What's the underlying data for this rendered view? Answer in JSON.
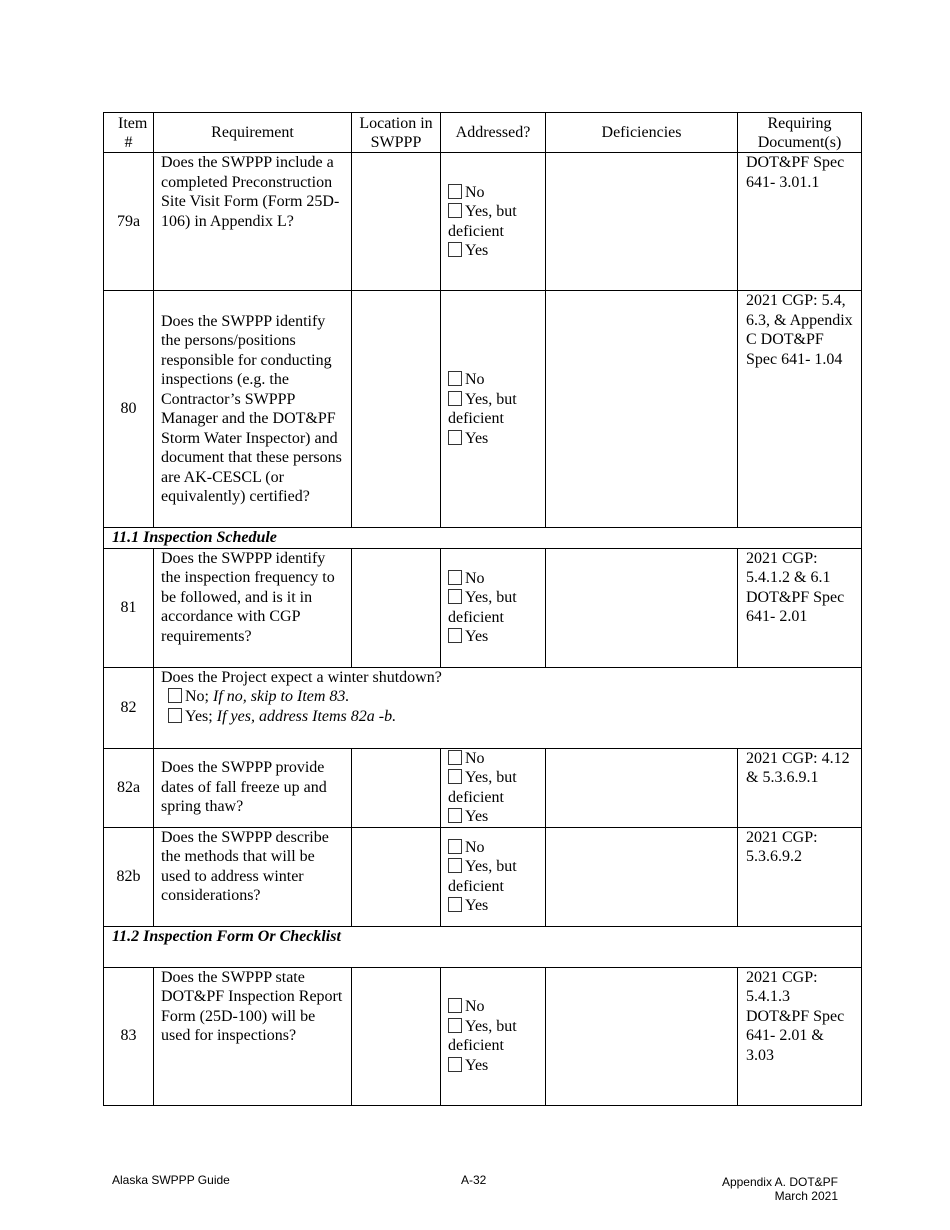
{
  "headers": [
    "Item #",
    "Requirement",
    "Location in SWPPP",
    "Addressed?",
    "Deficiencies",
    "Requiring Document(s)"
  ],
  "addressed_options": [
    "No",
    "Yes, but deficient",
    "Yes"
  ],
  "rows": [
    {
      "type": "item",
      "item": "79a",
      "requirement": "Does the SWPPP include a completed Preconstruction Site Visit Form (Form 25D-106) in Appendix L?",
      "location": "",
      "deficiencies": "",
      "docs": "DOT&PF Spec 641- 3.01.1"
    },
    {
      "type": "item",
      "item": "80",
      "requirement": "Does the SWPPP identify the persons/positions responsible for conducting inspections (e.g. the Contractor’s SWPPP Manager and the DOT&PF Storm Water Inspector) and document that these persons are AK-CESCL (or equivalently) certified?",
      "location": "",
      "deficiencies": "",
      "docs": "2021 CGP: 5.4, 6.3, & Appendix C DOT&PF Spec 641- 1.04"
    },
    {
      "type": "section",
      "title": "11.1 Inspection Schedule"
    },
    {
      "type": "item",
      "item": "81",
      "requirement": "Does the SWPPP identify the inspection frequency to be followed, and is it in accordance with CGP requirements?",
      "location": "",
      "deficiencies": "",
      "docs": "2021 CGP: 5.4.1.2 & 6.1 DOT&PF Spec 641- 2.01"
    },
    {
      "type": "question",
      "item": "82",
      "question": "Does the Project expect a winter shutdown?",
      "options": [
        {
          "label": "No;",
          "note": "If no, skip to Item 83."
        },
        {
          "label": "Yes;",
          "note": "If yes, address Items 82a -b."
        }
      ]
    },
    {
      "type": "item",
      "item": "82a",
      "requirement": "Does the SWPPP provide dates of fall freeze up and spring thaw?",
      "location": "",
      "deficiencies": "",
      "docs": "2021 CGP: 4.12 & 5.3.6.9.1"
    },
    {
      "type": "item",
      "item": "82b",
      "requirement": "Does the SWPPP describe the methods that will be used to address winter considerations?",
      "location": "",
      "deficiencies": "",
      "docs": "2021 CGP: 5.3.6.9.2"
    },
    {
      "type": "section",
      "title": "11.2 Inspection Form Or Checklist"
    },
    {
      "type": "item",
      "item": "83",
      "requirement": "Does the SWPPP state DOT&PF Inspection Report Form (25D-100) will be used for inspections?",
      "location": "",
      "deficiencies": "",
      "docs": "2021 CGP: 5.4.1.3 DOT&PF Spec 641- 2.01 & 3.03"
    }
  ],
  "footer": {
    "left": "Alaska SWPPP Guide",
    "center": "A-32",
    "right_line1": "Appendix A. DOT&PF",
    "right_line2": "March 2021"
  }
}
